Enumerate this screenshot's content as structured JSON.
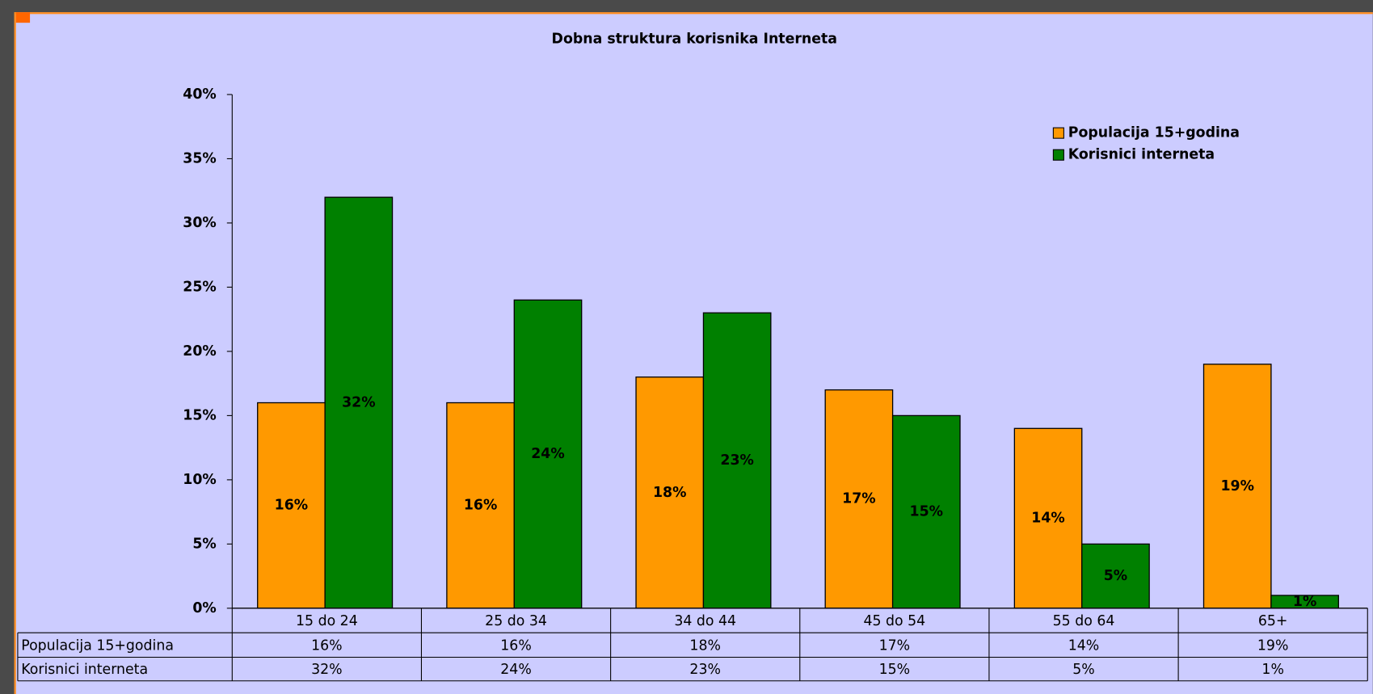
{
  "chart_data": {
    "type": "bar",
    "title": "Dobna struktura korisnika  Interneta",
    "categories": [
      "15 do 24",
      "25 do 34",
      "34 do 44",
      "45 do 54",
      "55 do 64",
      "65+"
    ],
    "series": [
      {
        "name": "Populacija 15+godina",
        "color": "#ff9900",
        "values": [
          16,
          16,
          18,
          17,
          14,
          19
        ],
        "value_labels": [
          "16%",
          "16%",
          "18%",
          "17%",
          "14%",
          "19%"
        ]
      },
      {
        "name": "Korisnici interneta",
        "color": "#008000",
        "values": [
          32,
          24,
          23,
          15,
          5,
          1
        ],
        "value_labels": [
          "32%",
          "24%",
          "23%",
          "15%",
          "5%",
          "1%"
        ]
      }
    ],
    "ylim": [
      0,
      40
    ],
    "yticks": [
      {
        "value": 0,
        "label": "0%"
      },
      {
        "value": 5,
        "label": "5%"
      },
      {
        "value": 10,
        "label": "10%"
      },
      {
        "value": 15,
        "label": "15%"
      },
      {
        "value": 20,
        "label": "20%"
      },
      {
        "value": 25,
        "label": "25%"
      },
      {
        "value": 30,
        "label": "30%"
      },
      {
        "value": 35,
        "label": "35%"
      },
      {
        "value": 40,
        "label": "40%"
      }
    ],
    "legend": "upper right",
    "data_table": true
  }
}
